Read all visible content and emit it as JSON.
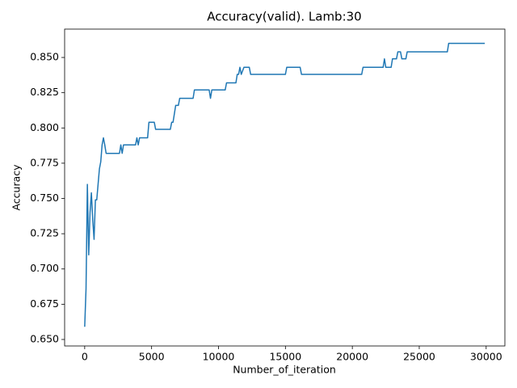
{
  "chart_data": {
    "type": "line",
    "title": "Accuracy(valid). Lamb:30",
    "x_label": "Number_of_iteration",
    "y_label": "Accuracy",
    "color": "#1f77b4",
    "xlim": [
      -1500,
      31400
    ],
    "ylim": [
      0.6454,
      0.8701
    ],
    "xticks": [
      0,
      5000,
      10000,
      15000,
      20000,
      25000,
      30000
    ],
    "yticks": [
      {
        "value": 0.65,
        "label": "0.650"
      },
      0.675,
      {
        "value": 0.7,
        "label": "0.700"
      },
      0.725,
      {
        "value": 0.75,
        "label": "0.750"
      },
      0.775,
      {
        "value": 0.8,
        "label": "0.800"
      },
      0.825,
      {
        "value": 0.85,
        "label": "0.850"
      }
    ],
    "x": [
      0,
      100,
      200,
      300,
      400,
      500,
      600,
      700,
      800,
      900,
      1000,
      1100,
      1200,
      1300,
      1400,
      1500,
      1600,
      2600,
      2700,
      2800,
      2900,
      3800,
      3900,
      4000,
      4100,
      4700,
      4800,
      5200,
      5300,
      6400,
      6500,
      6600,
      6700,
      6800,
      7000,
      7100,
      8100,
      8200,
      9300,
      9400,
      9500,
      10500,
      10600,
      11300,
      11400,
      11500,
      11600,
      11700,
      11900,
      12300,
      12400,
      15000,
      15100,
      16100,
      16200,
      20700,
      20800,
      22300,
      22400,
      22500,
      22900,
      23000,
      23300,
      23400,
      23600,
      23700,
      24000,
      24100,
      27100,
      27200,
      29900
    ],
    "values": [
      0.659,
      0.686,
      0.76,
      0.71,
      0.74,
      0.754,
      0.735,
      0.721,
      0.749,
      0.749,
      0.76,
      0.771,
      0.776,
      0.788,
      0.793,
      0.788,
      0.782,
      0.782,
      0.788,
      0.782,
      0.788,
      0.788,
      0.793,
      0.788,
      0.793,
      0.793,
      0.804,
      0.804,
      0.799,
      0.799,
      0.804,
      0.804,
      0.81,
      0.816,
      0.816,
      0.821,
      0.821,
      0.827,
      0.827,
      0.821,
      0.827,
      0.827,
      0.832,
      0.832,
      0.838,
      0.838,
      0.843,
      0.838,
      0.843,
      0.843,
      0.838,
      0.838,
      0.843,
      0.843,
      0.838,
      0.838,
      0.843,
      0.843,
      0.849,
      0.843,
      0.843,
      0.849,
      0.849,
      0.854,
      0.854,
      0.849,
      0.849,
      0.854,
      0.854,
      0.86,
      0.86
    ]
  }
}
